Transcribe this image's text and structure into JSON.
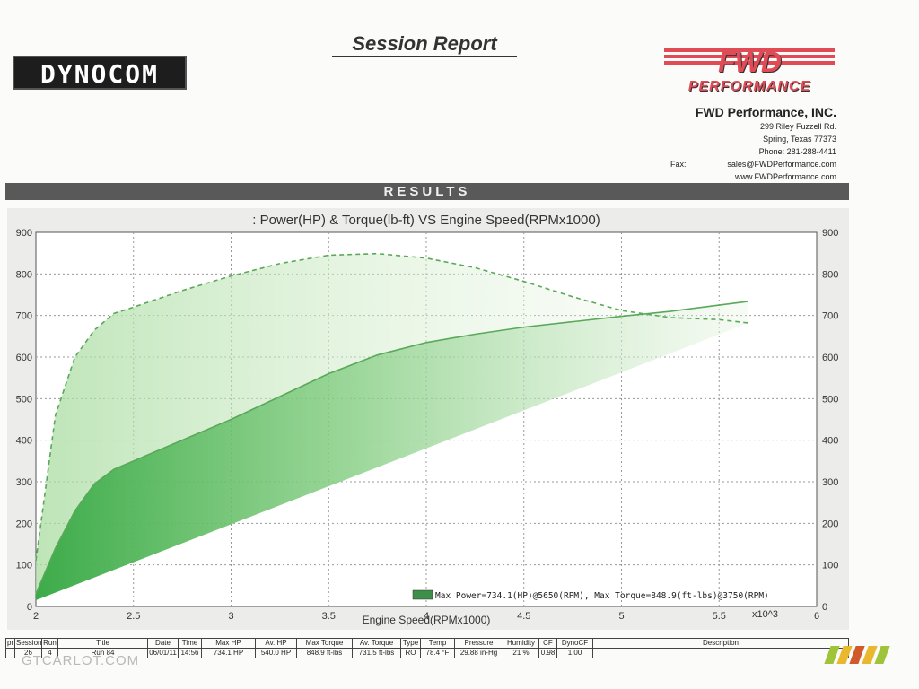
{
  "header": {
    "report_title": "Session Report",
    "left_logo": "DYNOCOM",
    "right_logo_top": "FWD",
    "right_logo_bottom": "PERFORMANCE",
    "results_label": "RESULTS"
  },
  "company": {
    "name": "FWD Performance, INC.",
    "address": "299 Riley Fuzzell Rd.",
    "city": "Spring, Texas 77373",
    "phone": "Phone: 281-288-4411",
    "fax_label": "Fax:",
    "email": "sales@FWDPerformance.com",
    "website": "www.FWDPerformance.com"
  },
  "chart_data": {
    "type": "line",
    "title": ": Power(HP) & Torque(lb-ft) VS Engine Speed(RPMx1000)",
    "xlabel": "Engine Speed(RPMx1000)",
    "x_multiplier": "x10^3",
    "xlim": [
      2,
      6
    ],
    "ylim": [
      0,
      900
    ],
    "x_ticks": [
      "2",
      "2.5",
      "3",
      "3.5",
      "4",
      "4.5",
      "5",
      "5.5",
      "6"
    ],
    "y_ticks": [
      "0",
      "100",
      "200",
      "300",
      "400",
      "500",
      "600",
      "700",
      "800",
      "900"
    ],
    "grid": true,
    "legend_text": "Max Power=734.1(HP)@5650(RPM), Max Torque=848.9(ft-lbs)@3750(RPM)",
    "legend_placement": "bottom-right",
    "series": [
      {
        "style": "solid",
        "x": [
          2.0,
          2.1,
          2.2,
          2.3,
          2.4,
          2.5,
          2.75,
          3.0,
          3.25,
          3.5,
          3.75,
          4.0,
          4.25,
          4.5,
          4.75,
          5.0,
          5.25,
          5.5,
          5.65
        ],
        "y": [
          30,
          140,
          230,
          295,
          330,
          350,
          400,
          450,
          505,
          560,
          605,
          635,
          655,
          672,
          685,
          698,
          710,
          725,
          734
        ]
      },
      {
        "style": "dashed",
        "x": [
          2.0,
          2.1,
          2.2,
          2.3,
          2.4,
          2.5,
          2.75,
          3.0,
          3.25,
          3.5,
          3.75,
          4.0,
          4.25,
          4.5,
          4.75,
          5.0,
          5.25,
          5.5,
          5.65
        ],
        "y": [
          110,
          460,
          600,
          665,
          705,
          720,
          760,
          795,
          825,
          845,
          848.9,
          838,
          815,
          782,
          745,
          712,
          695,
          690,
          682
        ]
      }
    ]
  },
  "summary_table": {
    "headers": [
      "pr",
      "Session",
      "Run",
      "Title",
      "Date",
      "Time",
      "Max HP",
      "Av. HP",
      "Max Torque",
      "Av. Torque",
      "Type",
      "Temp",
      "Pressure",
      "Humidity",
      "CF",
      "DynoCF",
      "Description"
    ],
    "row": [
      "",
      "26",
      "4",
      "Run 84",
      "06/01/11",
      "14:56",
      "734.1 HP",
      "540.0 HP",
      "848.9 ft-lbs",
      "731.5 ft-lbs",
      "RO",
      "78.4 °F",
      "29.88 in-Hg",
      "21 %",
      "0.98",
      "1.00",
      ""
    ]
  },
  "watermark": {
    "text": "GTCARLOT.COM",
    "stripe_colors": [
      "#9fc43a",
      "#e9b82e",
      "#d05a2a",
      "#e9b82e",
      "#9fc43a"
    ]
  },
  "colors": {
    "curve_line": "#5aa85a",
    "fill_dark": "#3fae4a",
    "fill_light": "#d8eed2",
    "plot_bg": "#ffffff",
    "grid": "#b0b0b0"
  }
}
